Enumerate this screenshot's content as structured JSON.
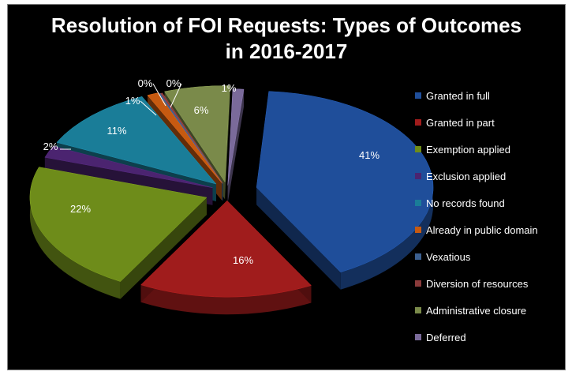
{
  "chart_data": {
    "type": "pie",
    "title": "Resolution of FOI Requests: Types of Outcomes\nin 2016-2017",
    "categories": [
      "Granted in full",
      "Granted in part",
      "Exemption applied",
      "Exclusion applied",
      "No records found",
      "Already in public domain",
      "Vexatious",
      "Diversion of resources",
      "Administrative closure",
      "Deferred"
    ],
    "values": [
      41,
      16,
      22,
      2,
      11,
      1,
      0,
      0,
      6,
      1
    ],
    "data_labels": [
      "41%",
      "16%",
      "22%",
      "2%",
      "11%",
      "1%",
      "0%",
      "0%",
      "6%",
      "1%"
    ],
    "colors": [
      "#1f4e9a",
      "#a01c1c",
      "#6e8c1a",
      "#4b2470",
      "#1a7d98",
      "#c65a11",
      "#3b5f8f",
      "#8a3b3b",
      "#7a8a4a",
      "#7a6a9a"
    ],
    "legend_position": "right",
    "exploded": true,
    "three_d": true
  }
}
